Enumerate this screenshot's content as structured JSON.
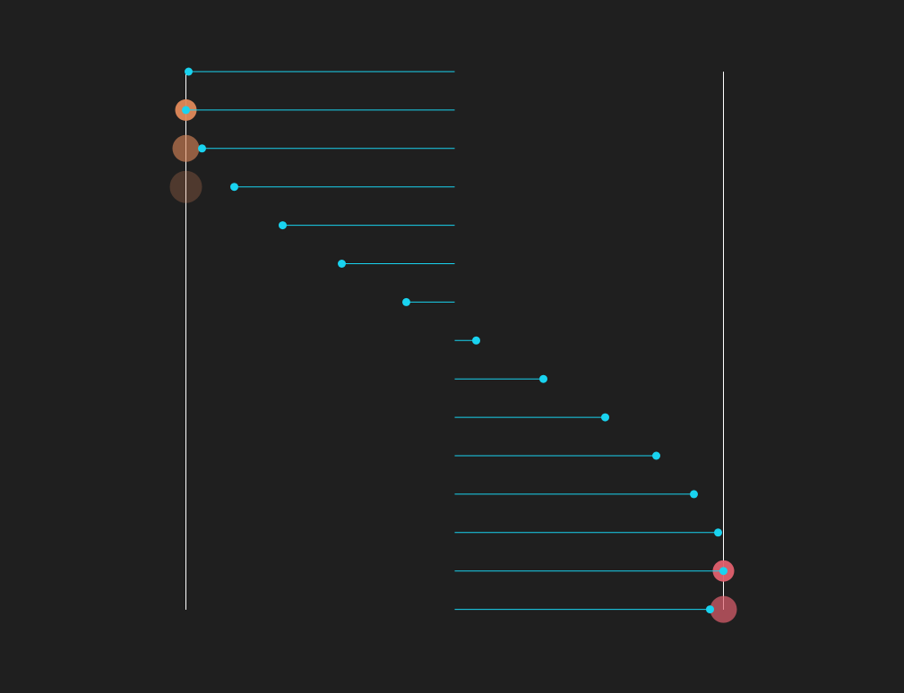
{
  "chart_data": {
    "type": "lollipop",
    "title": "",
    "xlabel": "",
    "ylabel": "",
    "xlim": [
      -1,
      1
    ],
    "baseline": 0,
    "bounds": [
      -1,
      1
    ],
    "grid": false,
    "legend": "none",
    "colors": {
      "background": "#1f1f1f",
      "stem": "#19d3f0",
      "dot": "#19d3f0",
      "bound_line": "#ffffff",
      "marker_low": "#e0895a",
      "marker_high": "#e0606e"
    },
    "values": [
      -0.99,
      -1.0,
      -0.94,
      -0.82,
      -0.64,
      -0.42,
      -0.18,
      0.08,
      0.33,
      0.56,
      0.75,
      0.89,
      0.98,
      1.0,
      0.95
    ],
    "bound_markers": [
      {
        "row": 1,
        "side": "low",
        "opacity": 0.95,
        "size": "small"
      },
      {
        "row": 2,
        "side": "low",
        "opacity": 0.6,
        "size": "medium"
      },
      {
        "row": 3,
        "side": "low",
        "opacity": 0.25,
        "size": "large"
      },
      {
        "row": 13,
        "side": "high",
        "opacity": 0.95,
        "size": "small"
      },
      {
        "row": 14,
        "side": "high",
        "opacity": 0.7,
        "size": "medium"
      }
    ]
  }
}
